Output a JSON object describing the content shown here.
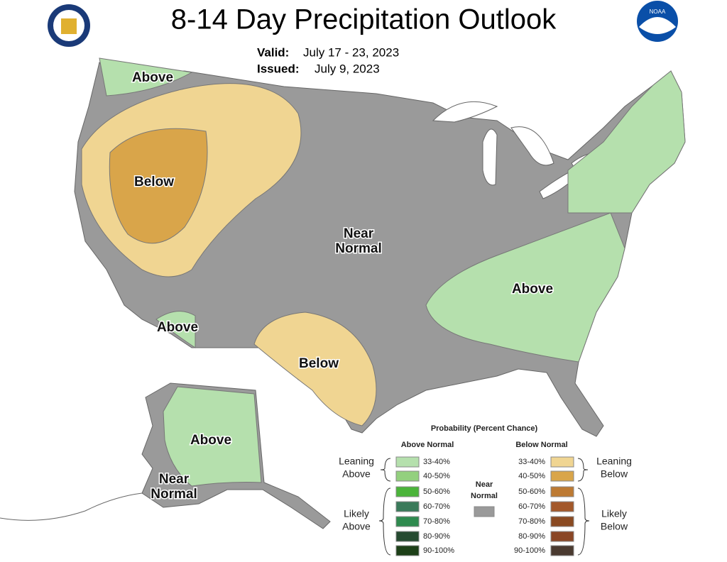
{
  "header": {
    "title": "8-14 Day Precipitation Outlook",
    "valid_label": "Valid:",
    "valid": "July 17 - 23, 2023",
    "issued_label": "Issued:",
    "issued": "July 9, 2023",
    "noaa_logo": "NOAA"
  },
  "map_labels": [
    {
      "lines": [
        "Above"
      ]
    },
    {
      "lines": [
        "Below"
      ]
    },
    {
      "lines": [
        "Near",
        "Normal"
      ]
    },
    {
      "lines": [
        "Above"
      ]
    },
    {
      "lines": [
        "Above"
      ]
    },
    {
      "lines": [
        "Below"
      ]
    },
    {
      "lines": [
        "Above"
      ]
    },
    {
      "lines": [
        "Near",
        "Normal"
      ]
    }
  ],
  "legend": {
    "title": "Probability (Percent Chance)",
    "above_header": "Above Normal",
    "below_header": "Below Normal",
    "above": [
      {
        "label": "33-40%",
        "color": "#b5e0ad"
      },
      {
        "label": "40-50%",
        "color": "#93d07e"
      },
      {
        "label": "50-60%",
        "color": "#4bb43a"
      },
      {
        "label": "60-70%",
        "color": "#3a7a5a"
      },
      {
        "label": "70-80%",
        "color": "#2e8a4e"
      },
      {
        "label": "80-90%",
        "color": "#254a30"
      },
      {
        "label": "90-100%",
        "color": "#1d4018"
      }
    ],
    "below": [
      {
        "label": "33-40%",
        "color": "#f0d592"
      },
      {
        "label": "40-50%",
        "color": "#d9a54a"
      },
      {
        "label": "50-60%",
        "color": "#bd7a33"
      },
      {
        "label": "60-70%",
        "color": "#a3582a"
      },
      {
        "label": "70-80%",
        "color": "#8a4a22"
      },
      {
        "label": "80-90%",
        "color": "#8a4625"
      },
      {
        "label": "90-100%",
        "color": "#4a3a30"
      }
    ],
    "near": {
      "lines": [
        "Near",
        "Normal"
      ],
      "color": "#9a9a9a"
    },
    "leaning_above": [
      "Leaning",
      "Above"
    ],
    "likely_above": [
      "Likely",
      "Above"
    ],
    "leaning_below": [
      "Leaning",
      "Below"
    ],
    "likely_below": [
      "Likely",
      "Below"
    ]
  }
}
